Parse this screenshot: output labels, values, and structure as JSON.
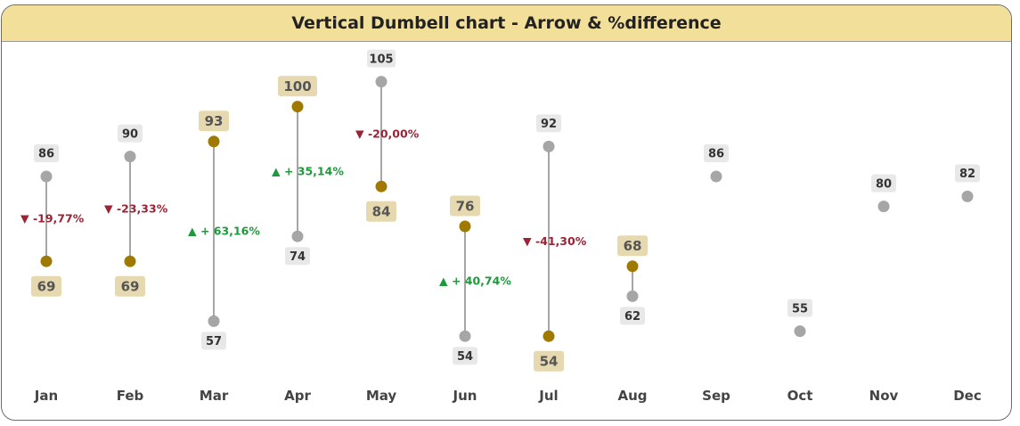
{
  "chart_data": {
    "type": "dumbbell",
    "title": "Vertical Dumbell chart - Arrow & %difference",
    "categories": [
      "Jan",
      "Feb",
      "Mar",
      "Apr",
      "May",
      "Jun",
      "Jul",
      "Aug",
      "Sep",
      "Oct",
      "Nov",
      "Dec"
    ],
    "series": [
      {
        "values": [
          86,
          90,
          57,
          74,
          105,
          54,
          92,
          62,
          86,
          55,
          80,
          82
        ]
      },
      {
        "values": [
          69,
          69,
          93,
          100,
          84,
          76,
          54,
          68,
          null,
          null,
          null,
          null
        ]
      }
    ],
    "differences": [
      "▼ -19,77%",
      "▼ -23,33%",
      "▲ + 63,16%",
      "▲ + 35,14%",
      "▼ -20,00%",
      "▲ + 40,74%",
      "▼ -41,30%",
      null,
      null,
      null,
      null,
      null
    ],
    "colors": {
      "previous": "#a6a6a6",
      "current": "#a07a00",
      "previous_label_bg": "#e8e8e8",
      "current_label_bg": "#e6d9b0",
      "increase": "#1e9a3c",
      "decrease": "#9b2335",
      "connector": "#a6a6a6"
    }
  }
}
